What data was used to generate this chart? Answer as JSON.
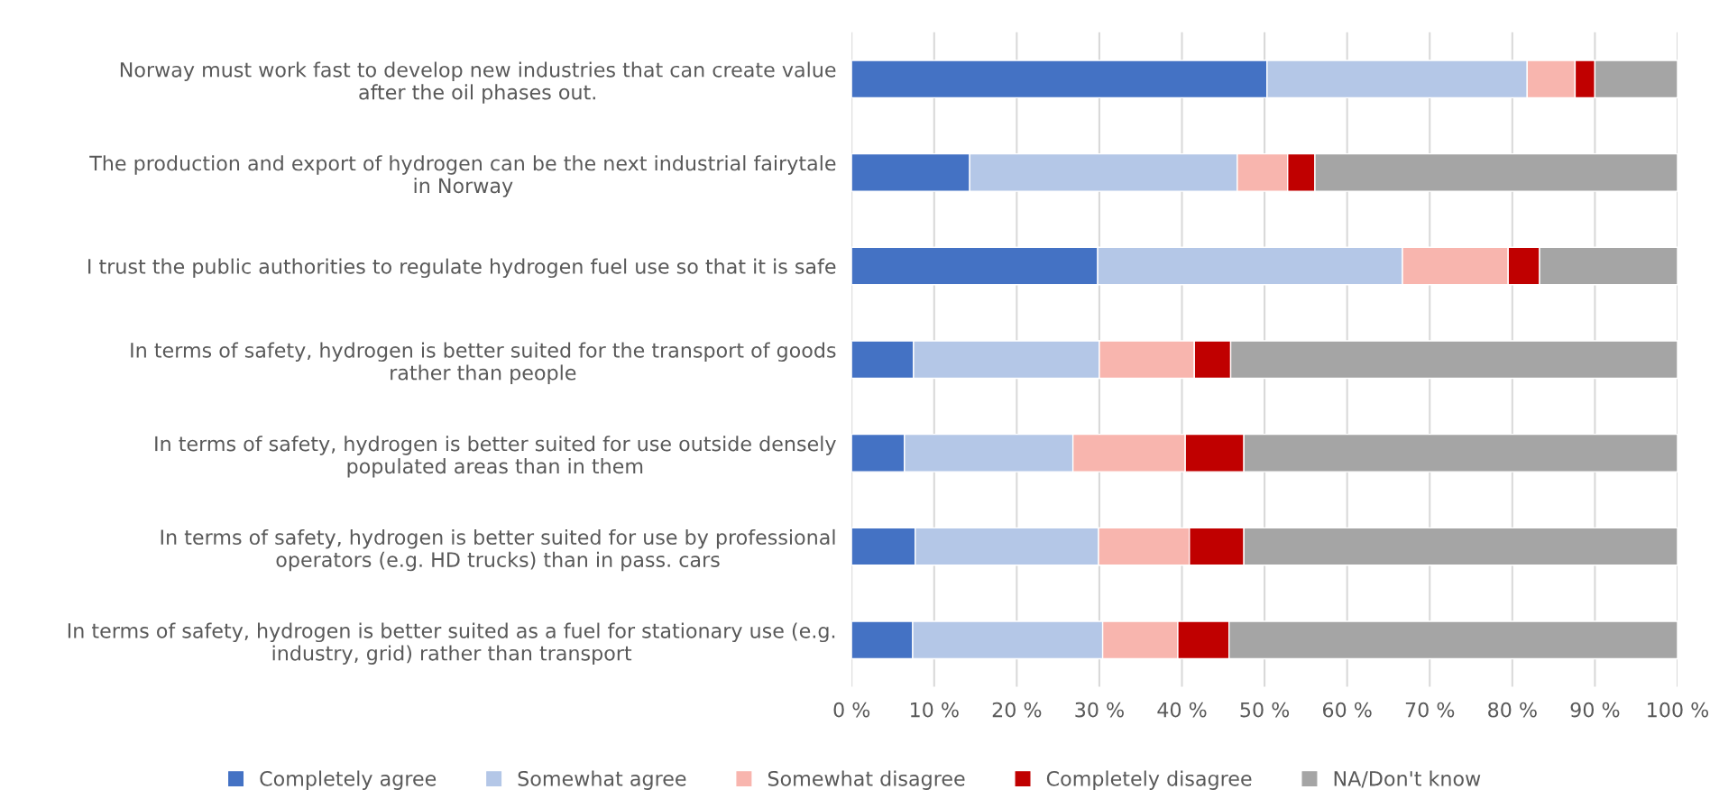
{
  "chart_data": {
    "type": "bar",
    "orientation": "horizontal",
    "stacked": true,
    "categories": [
      "Norway must work fast to develop new industries that can create value\nafter the oil phases out.",
      "The production and export of hydrogen can be the next industrial fairytale\nin Norway",
      "I trust the public authorities to regulate hydrogen fuel use so that it is safe",
      "In terms of safety, hydrogen is better suited for the transport of goods\nrather than people",
      "In terms of safety, hydrogen is better suited for use outside densely\npopulated areas than in them",
      "In terms of safety, hydrogen is better suited for use by professional\noperators (e.g. HD trucks) than in pass. cars",
      "In terms of safety, hydrogen is better suited as a fuel for stationary use (e.g.\nindustry, grid) rather than transport"
    ],
    "series": [
      {
        "name": "Completely agree",
        "color": "#4472c4",
        "values": [
          50.3,
          14.3,
          29.8,
          7.5,
          6.4,
          7.7,
          7.4
        ]
      },
      {
        "name": "Somewhat agree",
        "color": "#b4c7e7",
        "values": [
          31.5,
          32.4,
          36.9,
          22.5,
          20.4,
          22.2,
          23.0
        ]
      },
      {
        "name": "Somewhat disagree",
        "color": "#f8b5ae",
        "values": [
          5.8,
          6.1,
          12.8,
          11.5,
          13.6,
          11.0,
          9.1
        ]
      },
      {
        "name": "Completely disagree",
        "color": "#c00000",
        "values": [
          2.4,
          3.3,
          3.8,
          4.4,
          7.1,
          6.6,
          6.2
        ]
      },
      {
        "name": "NA/Don't know",
        "color": "#a5a5a5",
        "values": [
          10.0,
          43.9,
          16.7,
          54.1,
          52.5,
          52.5,
          54.3
        ]
      }
    ],
    "xlim": [
      0,
      100
    ],
    "xticks": [
      {
        "value": 0,
        "label": "0 %"
      },
      {
        "value": 10,
        "label": "10 %"
      },
      {
        "value": 20,
        "label": "20 %"
      },
      {
        "value": 30,
        "label": "30 %"
      },
      {
        "value": 40,
        "label": "40 %"
      },
      {
        "value": 50,
        "label": "50 %"
      },
      {
        "value": 60,
        "label": "60 %"
      },
      {
        "value": 70,
        "label": "70 %"
      },
      {
        "value": 80,
        "label": "80 %"
      },
      {
        "value": 90,
        "label": "90 %"
      },
      {
        "value": 100,
        "label": "100 %"
      }
    ],
    "grid": "x",
    "legend": "bottom"
  }
}
